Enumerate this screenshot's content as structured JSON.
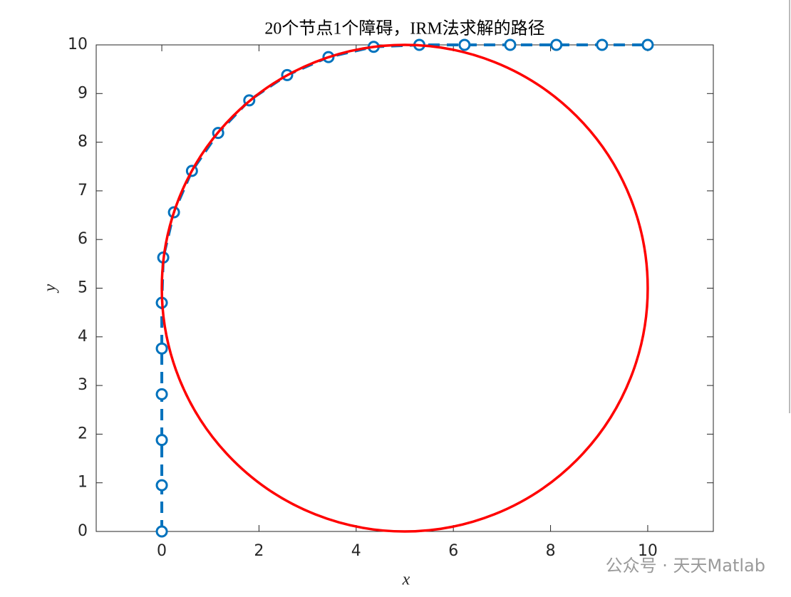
{
  "chart_data": {
    "type": "line",
    "title": "20个节点1个障碍，IRM法求解的路径",
    "xlabel": "x",
    "ylabel": "y",
    "xlim": [
      -1.35,
      11.35
    ],
    "ylim": [
      0,
      10
    ],
    "xticks": [
      0,
      2,
      4,
      6,
      8,
      10
    ],
    "yticks": [
      0,
      1,
      2,
      3,
      4,
      5,
      6,
      7,
      8,
      9,
      10
    ],
    "series": [
      {
        "color": "#0072bd",
        "x": [
          0,
          0,
          0,
          0,
          0,
          0,
          0.03,
          0.25,
          0.62,
          1.16,
          1.8,
          2.58,
          3.43,
          4.36,
          5.3,
          6.23,
          7.17,
          8.12,
          9.06,
          10
        ],
        "y": [
          0,
          0.95,
          1.88,
          2.82,
          3.76,
          4.7,
          5.63,
          6.56,
          7.41,
          8.19,
          8.86,
          9.38,
          9.75,
          9.96,
          10,
          10,
          10,
          10,
          10,
          10
        ]
      }
    ],
    "obstacle": {
      "center": [
        5,
        5
      ],
      "radius": 5,
      "color": "#ff0000"
    }
  },
  "watermark": "公众号 · 天天Matlab"
}
